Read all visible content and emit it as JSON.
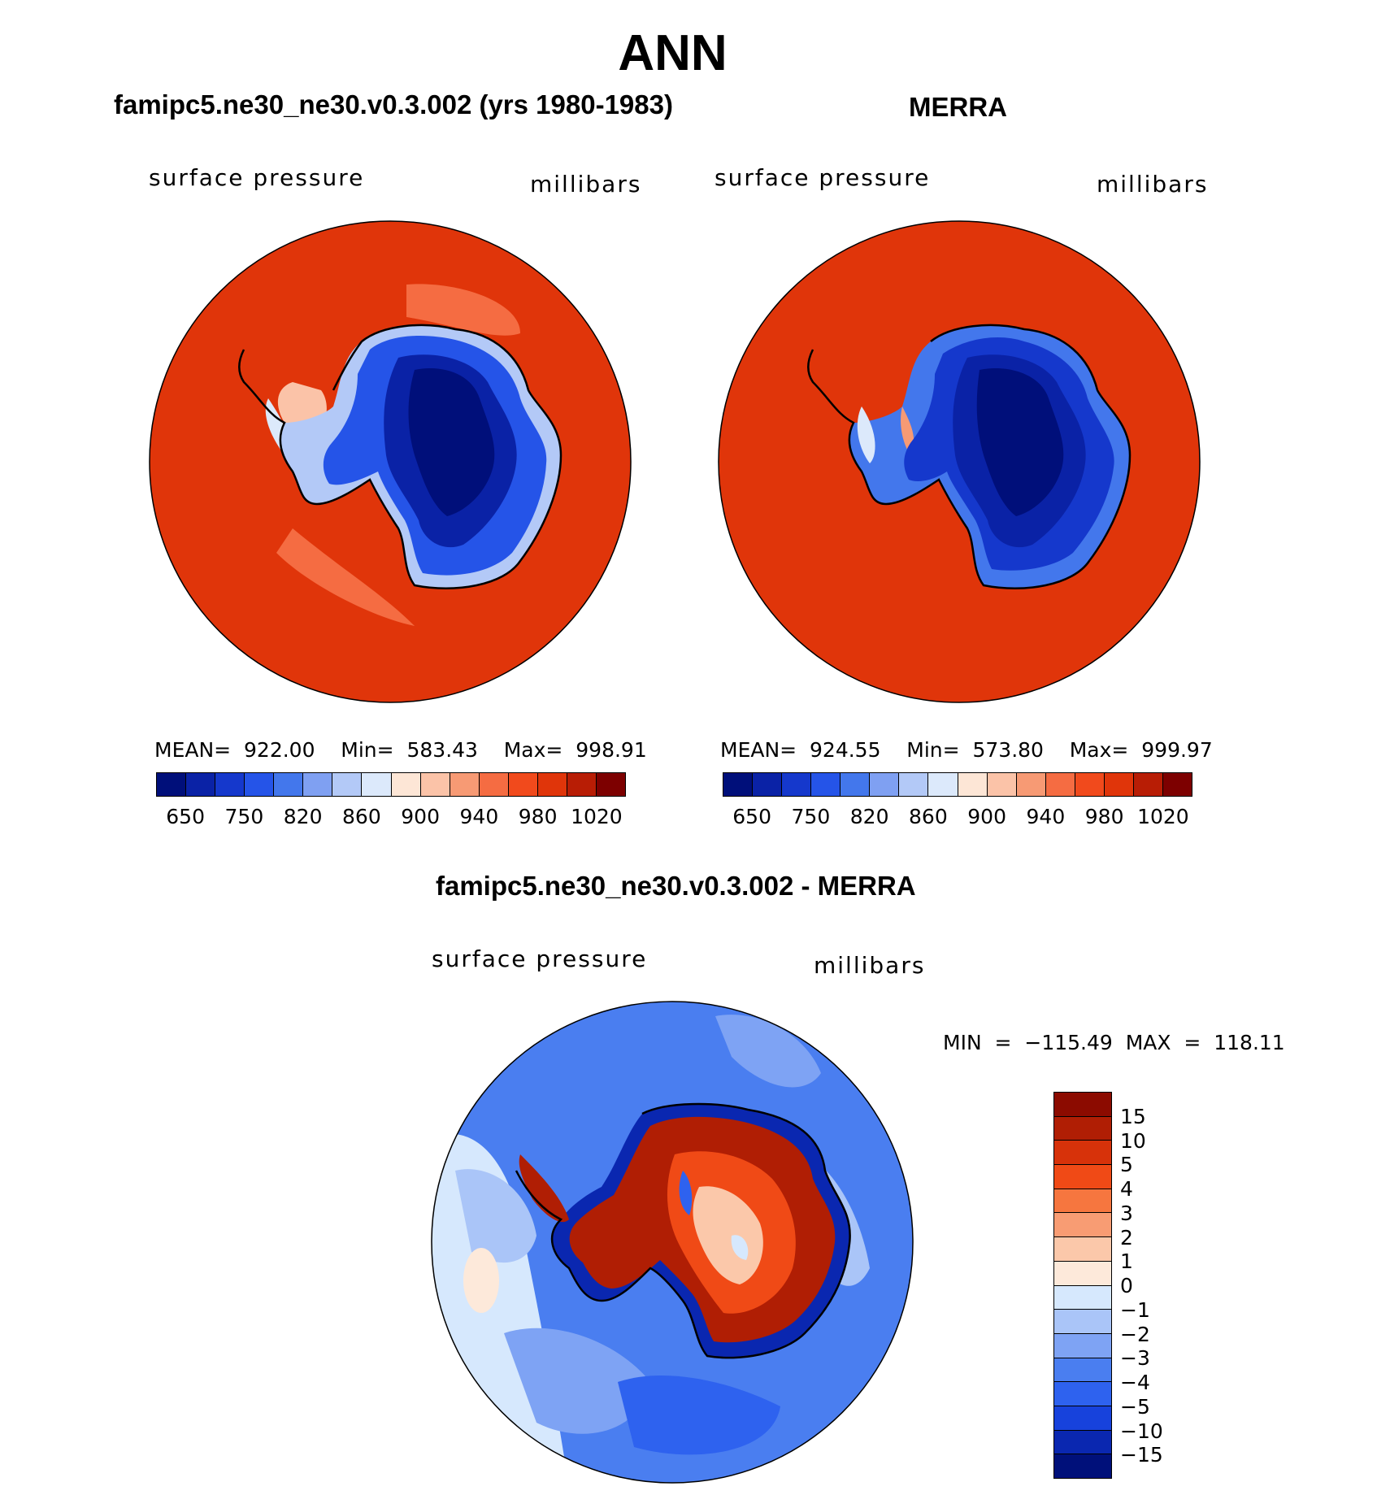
{
  "figure_title": "ANN",
  "panels": [
    {
      "title": "famipc5.ne30_ne30.v0.3.002 (yrs 1980-1983)",
      "left_label": "surface pressure",
      "right_label": "millibars",
      "stats": "MEAN=  922.00    Min=  583.43    Max=  998.91"
    },
    {
      "title": "MERRA",
      "left_label": "surface pressure",
      "right_label": "millibars",
      "stats": "MEAN=  924.55    Min=  573.80    Max=  999.97"
    },
    {
      "title": "famipc5.ne30_ne30.v0.3.002 - MERRA",
      "left_label": "surface pressure",
      "right_label": "millibars",
      "stats": "MIN  =  −115.49  MAX  =  118.11"
    }
  ],
  "abs_colorbar": {
    "colors": [
      "#000f7a",
      "#0a22a6",
      "#1538cc",
      "#2554e8",
      "#4377ec",
      "#7fa0f2",
      "#b3c9f7",
      "#dce9fb",
      "#fde6d6",
      "#fbc3a8",
      "#f79a74",
      "#f56c42",
      "#f14a1c",
      "#e0350a",
      "#b81d05",
      "#7d0000"
    ],
    "tick_labels": [
      "650",
      "750",
      "820",
      "860",
      "900",
      "940",
      "980",
      "1020"
    ]
  },
  "diff_colorbar": {
    "colors": [
      "#00107a",
      "#0a27b0",
      "#1742dc",
      "#2e62ef",
      "#4a7ef0",
      "#7ea3f4",
      "#aac5f8",
      "#d6e8fd",
      "#fde9da",
      "#fbc8aa",
      "#f89c73",
      "#f6763f",
      "#f04a16",
      "#d7320a",
      "#b01e04",
      "#8c0b00"
    ],
    "tick_labels": [
      "15",
      "10",
      "5",
      "4",
      "3",
      "2",
      "1",
      "0",
      "−1",
      "−2",
      "−3",
      "−4",
      "−5",
      "−10",
      "−15"
    ]
  }
}
